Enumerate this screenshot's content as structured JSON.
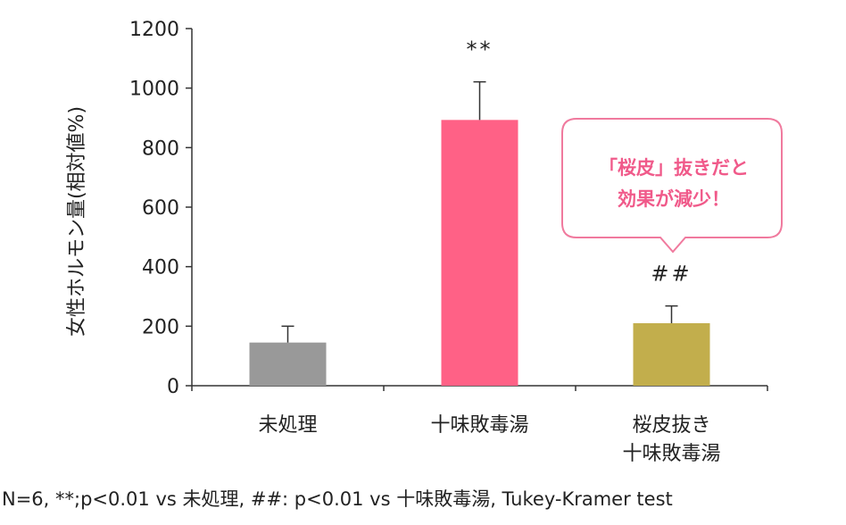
{
  "chart_data": {
    "type": "bar",
    "ylabel": "女性ホルモン量(相対値%)",
    "ylim": [
      0,
      1200
    ],
    "yticks": [
      0,
      200,
      400,
      600,
      800,
      1000,
      1200
    ],
    "categories": [
      [
        "未処理"
      ],
      [
        "十味敗毒湯"
      ],
      [
        "桜皮抜き",
        "十味敗毒湯"
      ]
    ],
    "values": [
      145,
      893,
      210
    ],
    "errors": [
      55,
      128,
      58
    ],
    "bar_colors": [
      "#999999",
      "#ff6186",
      "#c2ae4c"
    ],
    "significance": [
      "",
      "**",
      "##"
    ],
    "callout": {
      "lines": [
        "「桜皮」抜きだと",
        "効果が減少！"
      ],
      "text_color": "#f05a8a",
      "border_color": "#f07a9e"
    },
    "grid": false
  },
  "footnote": "N=6, **;p<0.01 vs 未処理, ##: p<0.01 vs 十味敗毒湯, Tukey-Kramer test"
}
